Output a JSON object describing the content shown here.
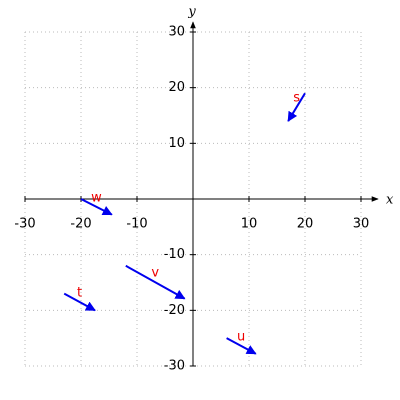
{
  "chart_data": {
    "type": "quiver",
    "xlabel": "x",
    "ylabel": "y",
    "xlim": [
      -30,
      30
    ],
    "ylim": [
      -30,
      30
    ],
    "xticks": [
      -30,
      -20,
      -10,
      10,
      20,
      30
    ],
    "yticks": [
      -30,
      -20,
      -10,
      10,
      20,
      30
    ],
    "grid": true,
    "color": "#0000ee",
    "label_color": "#ee0000",
    "vectors": [
      {
        "name": "s",
        "x": 20,
        "y": 19,
        "u": -3,
        "v": -5
      },
      {
        "name": "w",
        "x": -20,
        "y": 0,
        "u": 5.5,
        "v": -2.8
      },
      {
        "name": "t",
        "x": -23,
        "y": -17,
        "u": 5.5,
        "v": -3
      },
      {
        "name": "v",
        "x": -12,
        "y": -12,
        "u": 10.5,
        "v": -5.9
      },
      {
        "name": "u",
        "x": 6,
        "y": -25,
        "u": 5.2,
        "v": -2.8
      }
    ]
  }
}
